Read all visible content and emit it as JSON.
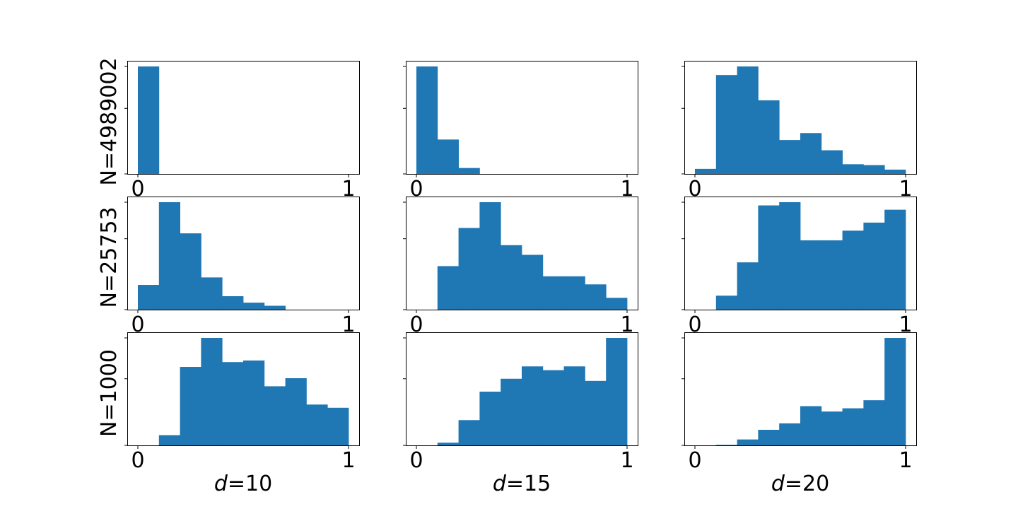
{
  "chart_data": {
    "type": "bar",
    "grid": false,
    "bar_color": "#1f77b4",
    "x_ticks": [
      "0",
      "1"
    ],
    "xlim": [
      0,
      1
    ],
    "bins": [
      0.0,
      0.1,
      0.2,
      0.3,
      0.4,
      0.5,
      0.6,
      0.7,
      0.8,
      0.9,
      1.0
    ],
    "rows": [
      {
        "label": "N=4989002"
      },
      {
        "label": "N=25753"
      },
      {
        "label": "N=1000"
      }
    ],
    "columns": [
      {
        "label_var": "d",
        "label_eq": "=10"
      },
      {
        "label_var": "d",
        "label_eq": "=15"
      },
      {
        "label_var": "d",
        "label_eq": "=20"
      }
    ],
    "panels": [
      [
        {
          "values": [
            1.0,
            0,
            0,
            0,
            0,
            0,
            0,
            0,
            0,
            0
          ]
        },
        {
          "values": [
            1.0,
            0.32,
            0.055,
            0,
            0,
            0,
            0,
            0,
            0,
            0
          ]
        },
        {
          "values": [
            0.047,
            0.92,
            1.0,
            0.685,
            0.315,
            0.38,
            0.22,
            0.09,
            0.082,
            0.04
          ]
        }
      ],
      [
        {
          "values": [
            0.23,
            1.0,
            0.71,
            0.3,
            0.125,
            0.065,
            0.036,
            0,
            0,
            0
          ]
        },
        {
          "values": [
            0,
            0.405,
            0.76,
            1.0,
            0.6,
            0.51,
            0.31,
            0.31,
            0.235,
            0.11
          ]
        },
        {
          "values": [
            0,
            0.13,
            0.44,
            0.97,
            1.0,
            0.645,
            0.645,
            0.735,
            0.81,
            0.93
          ]
        }
      ],
      [
        {
          "values": [
            0,
            0.095,
            0.73,
            1.0,
            0.775,
            0.79,
            0.55,
            0.625,
            0.38,
            0.35
          ]
        },
        {
          "values": [
            0,
            0.025,
            0.235,
            0.5,
            0.62,
            0.735,
            0.7,
            0.735,
            0.6,
            1.0
          ]
        },
        {
          "values": [
            0,
            0.005,
            0.055,
            0.145,
            0.205,
            0.365,
            0.315,
            0.345,
            0.42,
            1.0
          ]
        }
      ]
    ]
  }
}
